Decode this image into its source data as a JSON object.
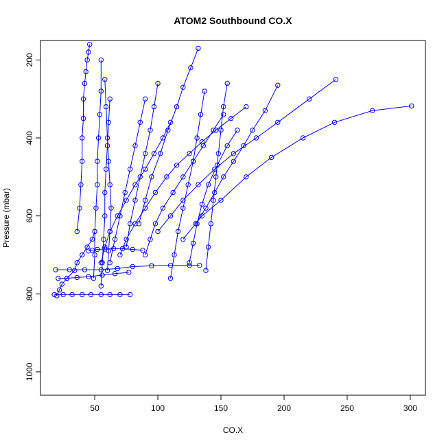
{
  "chart_data": {
    "type": "line",
    "title": "ATOM2 Southbound CO.X",
    "xlabel": "CO.X",
    "ylabel": "Pressure (mbar)",
    "xlim": [
      7,
      312
    ],
    "ylim": [
      1060,
      150
    ],
    "y_reversed": true,
    "x_ticks": [
      50,
      100,
      150,
      200,
      250,
      300
    ],
    "y_ticks": [
      200,
      400,
      600,
      800,
      1000
    ],
    "grid": false,
    "legend": "none",
    "color": "#0000FF",
    "series": [
      {
        "x": [
          20,
          22,
          24,
          28,
          34,
          36,
          40,
          44,
          48,
          50
        ],
        "y": [
          805,
          790,
          775,
          760,
          740,
          720,
          700,
          680,
          660,
          640
        ]
      },
      {
        "x": [
          18,
          25,
          32,
          40,
          47,
          55,
          62,
          70,
          78
        ],
        "y": [
          802,
          802,
          802,
          802,
          802,
          802,
          802,
          802,
          802
        ]
      },
      {
        "x": [
          19,
          30,
          42,
          55,
          68,
          80,
          95,
          110,
          125,
          133
        ],
        "y": [
          738,
          738,
          738,
          738,
          735,
          730,
          728,
          727,
          727,
          727
        ]
      },
      {
        "x": [
          21,
          28,
          36,
          45,
          56,
          66,
          77
        ],
        "y": [
          760,
          760,
          758,
          756,
          752,
          748,
          745
        ]
      },
      {
        "x": [
          45,
          48,
          52,
          58,
          65,
          72,
          80,
          88
        ],
        "y": [
          690,
          688,
          686,
          685,
          684,
          684,
          686,
          688
        ]
      },
      {
        "x": [
          36,
          38,
          39,
          40,
          40,
          41,
          41,
          42,
          43,
          44,
          45,
          46
        ],
        "y": [
          640,
          580,
          520,
          460,
          400,
          350,
          300,
          260,
          230,
          200,
          180,
          160
        ]
      },
      {
        "x": [
          49,
          50,
          50,
          51,
          52,
          52,
          53,
          54,
          55,
          55
        ],
        "y": [
          760,
          700,
          640,
          580,
          520,
          460,
          400,
          340,
          280,
          200
        ]
      },
      {
        "x": [
          55,
          56,
          57,
          58,
          58,
          59,
          60,
          61,
          62
        ],
        "y": [
          780,
          720,
          660,
          600,
          540,
          480,
          420,
          360,
          300
        ]
      },
      {
        "x": [
          60,
          61,
          62,
          63,
          62,
          61,
          60,
          59,
          58
        ],
        "y": [
          740,
          690,
          640,
          580,
          520,
          460,
          400,
          320,
          250
        ]
      },
      {
        "x": [
          55,
          58,
          62,
          68,
          75,
          82,
          90,
          97,
          104,
          110
        ],
        "y": [
          720,
          680,
          640,
          600,
          560,
          520,
          480,
          440,
          400,
          360
        ]
      },
      {
        "x": [
          70,
          75,
          82,
          90,
          98,
          107,
          115,
          125,
          135,
          146,
          158,
          170
        ],
        "y": [
          700,
          660,
          620,
          580,
          540,
          500,
          470,
          440,
          410,
          380,
          350,
          320
        ]
      },
      {
        "x": [
          100,
          110,
          120,
          132,
          145,
          160,
          178,
          195,
          220,
          241
        ],
        "y": [
          640,
          600,
          560,
          520,
          480,
          440,
          400,
          360,
          300,
          250
        ]
      },
      {
        "x": [
          120,
          135,
          150,
          170,
          190,
          215,
          240,
          270,
          301
        ],
        "y": [
          660,
          600,
          560,
          500,
          450,
          400,
          360,
          330,
          318
        ]
      },
      {
        "x": [
          130,
          138,
          145,
          152,
          160,
          168,
          175,
          185,
          195
        ],
        "y": [
          620,
          580,
          540,
          500,
          460,
          420,
          380,
          330,
          265
        ]
      },
      {
        "x": [
          85,
          90,
          95,
          102,
          108,
          115,
          120,
          126,
          132
        ],
        "y": [
          620,
          560,
          500,
          440,
          380,
          320,
          270,
          220,
          170
        ]
      },
      {
        "x": [
          75,
          78,
          82,
          86,
          90,
          94,
          97,
          100
        ],
        "y": [
          680,
          620,
          560,
          500,
          440,
          380,
          320,
          260
        ]
      },
      {
        "x": [
          110,
          113,
          116,
          120,
          124,
          128,
          131,
          134,
          137
        ],
        "y": [
          760,
          700,
          640,
          580,
          520,
          460,
          400,
          340,
          280
        ]
      },
      {
        "x": [
          138,
          140,
          142,
          144,
          146,
          148,
          150,
          152,
          155
        ],
        "y": [
          740,
          680,
          620,
          560,
          500,
          440,
          380,
          320,
          260
        ]
      },
      {
        "x": [
          62,
          66,
          70,
          74,
          78,
          82,
          86,
          90
        ],
        "y": [
          720,
          660,
          600,
          540,
          480,
          420,
          360,
          300
        ]
      },
      {
        "x": [
          90,
          94,
          98,
          104,
          112,
          120,
          128,
          136,
          144,
          152
        ],
        "y": [
          700,
          660,
          620,
          580,
          540,
          500,
          460,
          420,
          380,
          340
        ]
      },
      {
        "x": [
          125,
          128,
          131,
          135,
          140,
          147,
          155,
          163
        ],
        "y": [
          720,
          670,
          620,
          570,
          520,
          470,
          420,
          380
        ]
      }
    ]
  }
}
